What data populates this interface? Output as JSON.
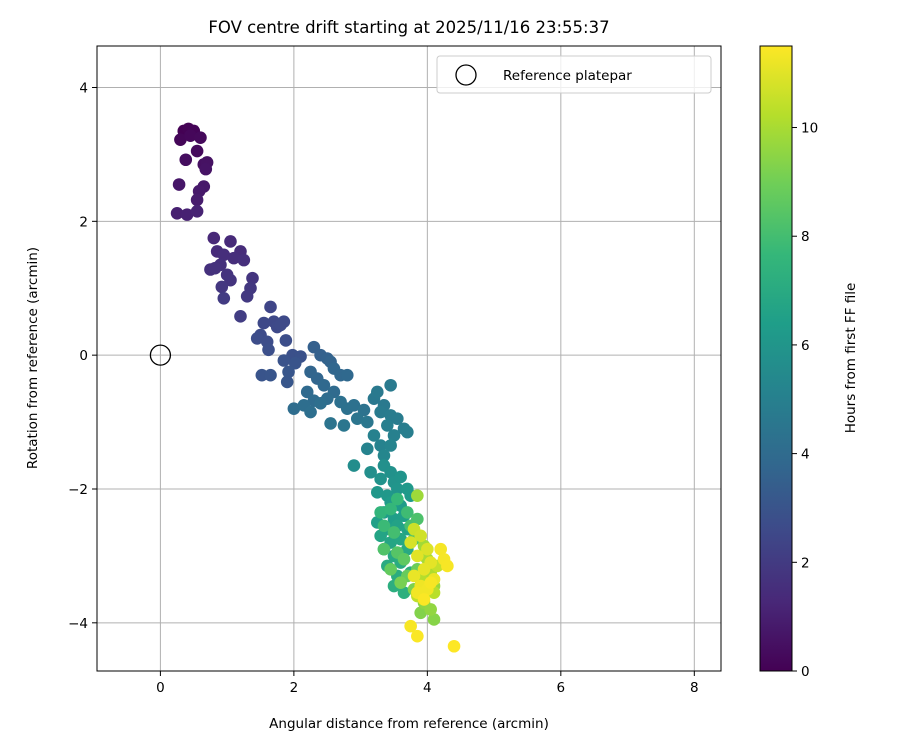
{
  "chart_data": {
    "type": "scatter",
    "title": "FOV centre drift starting at 2025/11/16 23:55:37",
    "xlabel": "Angular distance from reference (arcmin)",
    "ylabel": "Rotation from reference (arcmin)",
    "xlim": [
      -0.95,
      8.4
    ],
    "ylim": [
      -4.72,
      4.62
    ],
    "xticks": [
      0,
      2,
      4,
      6,
      8
    ],
    "yticks": [
      4,
      2,
      0,
      -2,
      -4
    ],
    "xtick_labels": [
      "0",
      "2",
      "4",
      "6",
      "8"
    ],
    "ytick_labels": [
      "4",
      "2",
      "0",
      "−2",
      "−4"
    ],
    "grid": true,
    "legend": {
      "position": "top-right",
      "entries": [
        "Reference platepar"
      ]
    },
    "reference_point": {
      "label": "Reference platepar",
      "x": 0,
      "y": 0
    },
    "colorbar": {
      "label": "Hours from first FF file",
      "colormap": "viridis",
      "range": [
        0,
        11.5
      ],
      "ticks": [
        0,
        2,
        4,
        6,
        8,
        10
      ],
      "tick_labels": [
        "0",
        "2",
        "4",
        "6",
        "8",
        "10"
      ]
    },
    "series": [
      {
        "name": "FOV centre drift",
        "color_by": "hours",
        "points": [
          {
            "x": 0.35,
            "y": 3.35,
            "c": 0.0
          },
          {
            "x": 0.42,
            "y": 3.38,
            "c": 0.05
          },
          {
            "x": 0.5,
            "y": 3.35,
            "c": 0.1
          },
          {
            "x": 0.3,
            "y": 3.22,
            "c": 0.15
          },
          {
            "x": 0.45,
            "y": 3.28,
            "c": 0.2
          },
          {
            "x": 0.6,
            "y": 3.25,
            "c": 0.25
          },
          {
            "x": 0.55,
            "y": 3.05,
            "c": 0.3
          },
          {
            "x": 0.38,
            "y": 2.92,
            "c": 0.4
          },
          {
            "x": 0.65,
            "y": 2.85,
            "c": 0.5
          },
          {
            "x": 0.7,
            "y": 2.88,
            "c": 0.55
          },
          {
            "x": 0.68,
            "y": 2.78,
            "c": 0.6
          },
          {
            "x": 0.28,
            "y": 2.55,
            "c": 0.7
          },
          {
            "x": 0.65,
            "y": 2.52,
            "c": 0.75
          },
          {
            "x": 0.58,
            "y": 2.45,
            "c": 0.8
          },
          {
            "x": 0.55,
            "y": 2.32,
            "c": 0.9
          },
          {
            "x": 0.25,
            "y": 2.12,
            "c": 1.0
          },
          {
            "x": 0.4,
            "y": 2.1,
            "c": 1.05
          },
          {
            "x": 0.55,
            "y": 2.15,
            "c": 1.1
          },
          {
            "x": 0.8,
            "y": 1.75,
            "c": 1.3
          },
          {
            "x": 1.05,
            "y": 1.7,
            "c": 1.35
          },
          {
            "x": 0.85,
            "y": 1.55,
            "c": 1.4
          },
          {
            "x": 1.2,
            "y": 1.55,
            "c": 1.45
          },
          {
            "x": 0.95,
            "y": 1.5,
            "c": 1.5
          },
          {
            "x": 1.1,
            "y": 1.45,
            "c": 1.5
          },
          {
            "x": 1.25,
            "y": 1.42,
            "c": 1.55
          },
          {
            "x": 0.9,
            "y": 1.35,
            "c": 1.6
          },
          {
            "x": 0.75,
            "y": 1.28,
            "c": 1.6
          },
          {
            "x": 0.82,
            "y": 1.3,
            "c": 1.65
          },
          {
            "x": 1.0,
            "y": 1.2,
            "c": 1.7
          },
          {
            "x": 1.05,
            "y": 1.12,
            "c": 1.75
          },
          {
            "x": 1.38,
            "y": 1.15,
            "c": 1.8
          },
          {
            "x": 0.92,
            "y": 1.02,
            "c": 1.85
          },
          {
            "x": 1.35,
            "y": 1.0,
            "c": 1.9
          },
          {
            "x": 1.3,
            "y": 0.88,
            "c": 1.95
          },
          {
            "x": 0.95,
            "y": 0.85,
            "c": 2.0
          },
          {
            "x": 1.2,
            "y": 0.58,
            "c": 2.1
          },
          {
            "x": 1.65,
            "y": 0.72,
            "c": 2.4
          },
          {
            "x": 1.55,
            "y": 0.48,
            "c": 2.5
          },
          {
            "x": 1.7,
            "y": 0.5,
            "c": 2.5
          },
          {
            "x": 1.75,
            "y": 0.42,
            "c": 2.55
          },
          {
            "x": 1.8,
            "y": 0.45,
            "c": 2.6
          },
          {
            "x": 1.85,
            "y": 0.5,
            "c": 2.6
          },
          {
            "x": 1.5,
            "y": 0.3,
            "c": 2.65
          },
          {
            "x": 1.45,
            "y": 0.25,
            "c": 2.7
          },
          {
            "x": 1.6,
            "y": 0.2,
            "c": 2.7
          },
          {
            "x": 1.88,
            "y": 0.22,
            "c": 2.75
          },
          {
            "x": 1.62,
            "y": 0.08,
            "c": 2.8
          },
          {
            "x": 1.98,
            "y": 0.0,
            "c": 2.85
          },
          {
            "x": 2.1,
            "y": -0.02,
            "c": 2.9
          },
          {
            "x": 1.85,
            "y": -0.08,
            "c": 2.95
          },
          {
            "x": 2.02,
            "y": -0.12,
            "c": 3.0
          },
          {
            "x": 1.52,
            "y": -0.3,
            "c": 3.0
          },
          {
            "x": 1.65,
            "y": -0.3,
            "c": 3.05
          },
          {
            "x": 1.9,
            "y": -0.4,
            "c": 3.1
          },
          {
            "x": 1.92,
            "y": -0.25,
            "c": 3.1
          },
          {
            "x": 2.3,
            "y": 0.12,
            "c": 3.5
          },
          {
            "x": 2.4,
            "y": 0.0,
            "c": 3.55
          },
          {
            "x": 2.5,
            "y": -0.05,
            "c": 3.6
          },
          {
            "x": 2.55,
            "y": -0.1,
            "c": 3.65
          },
          {
            "x": 2.25,
            "y": -0.25,
            "c": 3.7
          },
          {
            "x": 2.35,
            "y": -0.35,
            "c": 3.75
          },
          {
            "x": 2.6,
            "y": -0.2,
            "c": 3.8
          },
          {
            "x": 2.7,
            "y": -0.3,
            "c": 3.85
          },
          {
            "x": 2.8,
            "y": -0.3,
            "c": 3.9
          },
          {
            "x": 2.45,
            "y": -0.45,
            "c": 3.9
          },
          {
            "x": 2.2,
            "y": -0.55,
            "c": 3.95
          },
          {
            "x": 2.6,
            "y": -0.55,
            "c": 4.0
          },
          {
            "x": 2.3,
            "y": -0.68,
            "c": 4.05
          },
          {
            "x": 2.5,
            "y": -0.65,
            "c": 4.1
          },
          {
            "x": 2.0,
            "y": -0.8,
            "c": 4.1
          },
          {
            "x": 2.15,
            "y": -0.75,
            "c": 4.15
          },
          {
            "x": 2.25,
            "y": -0.85,
            "c": 4.2
          },
          {
            "x": 2.4,
            "y": -0.72,
            "c": 4.2
          },
          {
            "x": 2.7,
            "y": -0.7,
            "c": 4.25
          },
          {
            "x": 2.8,
            "y": -0.8,
            "c": 4.3
          },
          {
            "x": 2.9,
            "y": -0.75,
            "c": 4.3
          },
          {
            "x": 3.05,
            "y": -0.82,
            "c": 4.35
          },
          {
            "x": 2.55,
            "y": -1.02,
            "c": 4.4
          },
          {
            "x": 2.95,
            "y": -0.95,
            "c": 4.45
          },
          {
            "x": 2.75,
            "y": -1.05,
            "c": 4.5
          },
          {
            "x": 3.1,
            "y": -1.0,
            "c": 4.55
          },
          {
            "x": 3.2,
            "y": -0.65,
            "c": 4.6
          },
          {
            "x": 3.25,
            "y": -0.55,
            "c": 4.65
          },
          {
            "x": 3.35,
            "y": -0.75,
            "c": 4.65
          },
          {
            "x": 3.45,
            "y": -0.45,
            "c": 4.7
          },
          {
            "x": 3.3,
            "y": -0.85,
            "c": 4.75
          },
          {
            "x": 3.45,
            "y": -0.9,
            "c": 4.8
          },
          {
            "x": 3.55,
            "y": -0.95,
            "c": 4.8
          },
          {
            "x": 3.65,
            "y": -1.1,
            "c": 4.85
          },
          {
            "x": 3.7,
            "y": -1.15,
            "c": 4.9
          },
          {
            "x": 3.4,
            "y": -1.05,
            "c": 4.95
          },
          {
            "x": 3.5,
            "y": -1.2,
            "c": 5.0
          },
          {
            "x": 3.2,
            "y": -1.2,
            "c": 5.05
          },
          {
            "x": 3.3,
            "y": -1.35,
            "c": 5.1
          },
          {
            "x": 3.1,
            "y": -1.4,
            "c": 5.15
          },
          {
            "x": 3.45,
            "y": -1.35,
            "c": 5.2
          },
          {
            "x": 3.35,
            "y": -1.5,
            "c": 5.3
          },
          {
            "x": 2.9,
            "y": -1.65,
            "c": 5.6
          },
          {
            "x": 3.15,
            "y": -1.75,
            "c": 5.7
          },
          {
            "x": 3.35,
            "y": -1.65,
            "c": 5.75
          },
          {
            "x": 3.45,
            "y": -1.75,
            "c": 5.8
          },
          {
            "x": 3.3,
            "y": -1.85,
            "c": 5.85
          },
          {
            "x": 3.5,
            "y": -1.9,
            "c": 5.9
          },
          {
            "x": 3.6,
            "y": -1.82,
            "c": 5.95
          },
          {
            "x": 3.55,
            "y": -2.0,
            "c": 6.0
          },
          {
            "x": 3.25,
            "y": -2.05,
            "c": 6.05
          },
          {
            "x": 3.4,
            "y": -2.1,
            "c": 6.1
          },
          {
            "x": 3.7,
            "y": -2.0,
            "c": 6.15
          },
          {
            "x": 3.75,
            "y": -2.1,
            "c": 6.2
          },
          {
            "x": 3.45,
            "y": -2.2,
            "c": 6.25
          },
          {
            "x": 3.6,
            "y": -2.25,
            "c": 6.3
          },
          {
            "x": 3.35,
            "y": -2.35,
            "c": 6.35
          },
          {
            "x": 3.5,
            "y": -2.45,
            "c": 6.4
          },
          {
            "x": 3.65,
            "y": -2.4,
            "c": 6.45
          },
          {
            "x": 3.25,
            "y": -2.5,
            "c": 6.5
          },
          {
            "x": 3.4,
            "y": -2.6,
            "c": 6.55
          },
          {
            "x": 3.55,
            "y": -2.55,
            "c": 6.6
          },
          {
            "x": 3.7,
            "y": -2.6,
            "c": 6.65
          },
          {
            "x": 3.3,
            "y": -2.7,
            "c": 6.7
          },
          {
            "x": 3.45,
            "y": -2.8,
            "c": 6.75
          },
          {
            "x": 3.6,
            "y": -2.75,
            "c": 6.8
          },
          {
            "x": 3.35,
            "y": -2.9,
            "c": 6.85
          },
          {
            "x": 3.5,
            "y": -3.0,
            "c": 6.9
          },
          {
            "x": 3.7,
            "y": -2.9,
            "c": 6.95
          },
          {
            "x": 3.4,
            "y": -3.15,
            "c": 7.0
          },
          {
            "x": 3.6,
            "y": -3.1,
            "c": 7.05
          },
          {
            "x": 3.55,
            "y": -3.3,
            "c": 7.1
          },
          {
            "x": 3.75,
            "y": -3.25,
            "c": 7.15
          },
          {
            "x": 3.5,
            "y": -3.45,
            "c": 7.2
          },
          {
            "x": 3.65,
            "y": -3.55,
            "c": 7.25
          },
          {
            "x": 3.3,
            "y": -2.35,
            "c": 7.5
          },
          {
            "x": 3.45,
            "y": -2.3,
            "c": 7.6
          },
          {
            "x": 3.55,
            "y": -2.15,
            "c": 7.7
          },
          {
            "x": 3.35,
            "y": -2.55,
            "c": 7.8
          },
          {
            "x": 3.7,
            "y": -2.35,
            "c": 7.9
          },
          {
            "x": 3.5,
            "y": -2.65,
            "c": 8.0
          },
          {
            "x": 3.75,
            "y": -2.55,
            "c": 8.1
          },
          {
            "x": 3.85,
            "y": -2.45,
            "c": 8.2
          },
          {
            "x": 3.35,
            "y": -2.9,
            "c": 8.3
          },
          {
            "x": 3.55,
            "y": -2.95,
            "c": 8.4
          },
          {
            "x": 3.8,
            "y": -2.75,
            "c": 8.5
          },
          {
            "x": 3.65,
            "y": -3.05,
            "c": 8.6
          },
          {
            "x": 3.45,
            "y": -3.2,
            "c": 8.7
          },
          {
            "x": 3.7,
            "y": -3.3,
            "c": 8.8
          },
          {
            "x": 3.85,
            "y": -3.2,
            "c": 8.9
          },
          {
            "x": 3.95,
            "y": -3.0,
            "c": 9.0
          },
          {
            "x": 3.6,
            "y": -3.4,
            "c": 9.1
          },
          {
            "x": 3.8,
            "y": -3.5,
            "c": 9.2
          },
          {
            "x": 3.9,
            "y": -3.85,
            "c": 9.3
          },
          {
            "x": 4.1,
            "y": -3.95,
            "c": 9.4
          },
          {
            "x": 3.95,
            "y": -3.7,
            "c": 9.5
          },
          {
            "x": 4.05,
            "y": -3.8,
            "c": 9.6
          },
          {
            "x": 4.1,
            "y": -3.45,
            "c": 9.7
          },
          {
            "x": 3.85,
            "y": -2.1,
            "c": 9.8
          },
          {
            "x": 3.95,
            "y": -2.85,
            "c": 9.9
          },
          {
            "x": 4.0,
            "y": -3.05,
            "c": 10.0
          },
          {
            "x": 4.05,
            "y": -3.25,
            "c": 10.1
          },
          {
            "x": 3.9,
            "y": -3.35,
            "c": 10.2
          },
          {
            "x": 4.1,
            "y": -3.55,
            "c": 10.3
          },
          {
            "x": 3.85,
            "y": -3.6,
            "c": 10.4
          },
          {
            "x": 4.15,
            "y": -3.15,
            "c": 10.5
          },
          {
            "x": 3.8,
            "y": -2.6,
            "c": 10.6
          },
          {
            "x": 3.9,
            "y": -2.7,
            "c": 10.7
          },
          {
            "x": 3.75,
            "y": -2.8,
            "c": 10.8
          },
          {
            "x": 4.0,
            "y": -2.9,
            "c": 10.9
          },
          {
            "x": 3.85,
            "y": -3.0,
            "c": 11.0
          },
          {
            "x": 4.05,
            "y": -3.1,
            "c": 11.05
          },
          {
            "x": 3.95,
            "y": -3.2,
            "c": 11.1
          },
          {
            "x": 3.8,
            "y": -3.3,
            "c": 11.15
          },
          {
            "x": 4.1,
            "y": -3.35,
            "c": 11.2
          },
          {
            "x": 3.9,
            "y": -3.45,
            "c": 11.25
          },
          {
            "x": 4.0,
            "y": -3.5,
            "c": 11.3
          },
          {
            "x": 3.85,
            "y": -3.55,
            "c": 11.3
          },
          {
            "x": 4.2,
            "y": -2.9,
            "c": 11.35
          },
          {
            "x": 4.25,
            "y": -3.05,
            "c": 11.35
          },
          {
            "x": 4.3,
            "y": -3.15,
            "c": 11.4
          },
          {
            "x": 3.75,
            "y": -4.05,
            "c": 11.4
          },
          {
            "x": 3.85,
            "y": -4.2,
            "c": 11.45
          },
          {
            "x": 4.4,
            "y": -4.35,
            "c": 11.5
          },
          {
            "x": 3.95,
            "y": -3.65,
            "c": 11.45
          },
          {
            "x": 4.05,
            "y": -3.4,
            "c": 11.4
          }
        ]
      }
    ]
  }
}
